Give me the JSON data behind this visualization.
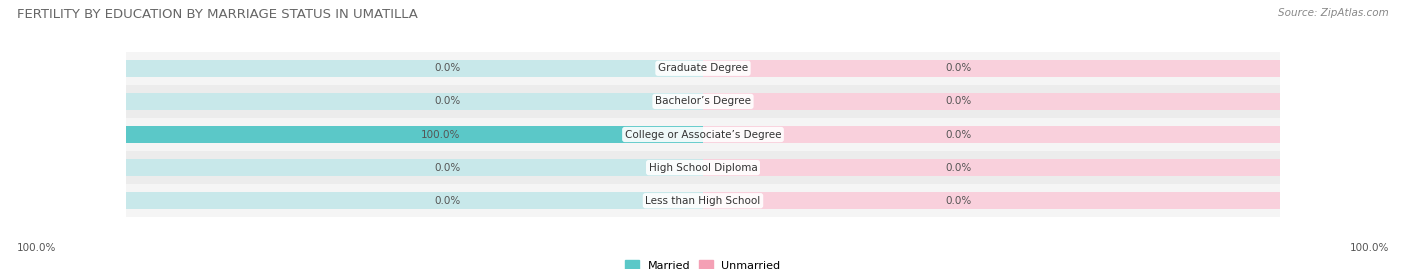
{
  "title": "FERTILITY BY EDUCATION BY MARRIAGE STATUS IN UMATILLA",
  "source": "Source: ZipAtlas.com",
  "categories": [
    "Less than High School",
    "High School Diploma",
    "College or Associate’s Degree",
    "Bachelor’s Degree",
    "Graduate Degree"
  ],
  "married_values": [
    0.0,
    0.0,
    100.0,
    0.0,
    0.0
  ],
  "unmarried_values": [
    0.0,
    0.0,
    0.0,
    0.0,
    0.0
  ],
  "married_color": "#5bc8c8",
  "unmarried_color": "#f4a0b5",
  "married_bg_color": "#c8e8ea",
  "unmarried_bg_color": "#f9d0dc",
  "row_bg_even": "#f5f5f5",
  "row_bg_odd": "#ececec",
  "married_label": "Married",
  "unmarried_label": "Unmarried",
  "max_val": 100.0,
  "title_fontsize": 9.5,
  "label_fontsize": 7.5,
  "value_fontsize": 7.5,
  "source_fontsize": 7.5,
  "legend_fontsize": 8.0,
  "left_axis_label": "100.0%",
  "right_axis_label": "100.0%",
  "bar_height": 0.52,
  "figsize": [
    14.06,
    2.69
  ],
  "dpi": 100
}
